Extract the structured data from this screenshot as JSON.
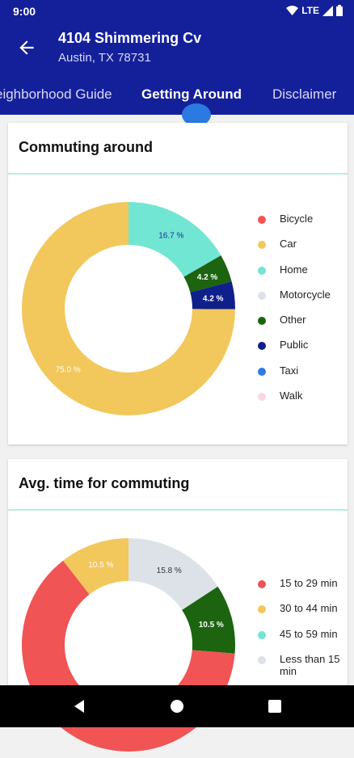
{
  "status": {
    "time": "9:00",
    "network": "LTE"
  },
  "header": {
    "title": "4104 Shimmering Cv",
    "subtitle": "Austin, TX 78731"
  },
  "tabs": [
    {
      "label": "eighborhood Guide",
      "active": false
    },
    {
      "label": "Getting Around",
      "active": true
    },
    {
      "label": "Disclaimer",
      "active": false
    }
  ],
  "colors": {
    "primary": "#14209a",
    "accent": "#2a7ae2",
    "divider": "#b9ece3"
  },
  "commuting": {
    "title": "Commuting around",
    "legend": [
      {
        "label": "Bicycle",
        "color": "#f05454"
      },
      {
        "label": "Car",
        "color": "#f2c75c"
      },
      {
        "label": "Home",
        "color": "#71e6d3"
      },
      {
        "label": "Motorcycle",
        "color": "#dde2e8"
      },
      {
        "label": "Other",
        "color": "#1c6410"
      },
      {
        "label": "Public",
        "color": "#10208a"
      },
      {
        "label": "Taxi",
        "color": "#2f7ae0"
      },
      {
        "label": "Walk",
        "color": "#fbd7e1"
      }
    ]
  },
  "commute_time": {
    "title": "Avg. time for commuting",
    "legend": [
      {
        "label": "15 to 29 min",
        "color": "#f05454"
      },
      {
        "label": "30 to 44 min",
        "color": "#f2c75c"
      },
      {
        "label": "45 to 59 min",
        "color": "#71e6d3"
      },
      {
        "label": "Less than 15 min",
        "color": "#dde2e8"
      }
    ]
  },
  "chart_data": [
    {
      "type": "pie",
      "title": "Commuting around",
      "slices": [
        {
          "label": "Home",
          "value": 16.7,
          "display": "16.7 %",
          "color": "#71e6d3",
          "text_color": "#1f2a9a"
        },
        {
          "label": "Other",
          "value": 4.2,
          "display": "4.2 %",
          "color": "#1c6410",
          "text_color": "#ffffff"
        },
        {
          "label": "Public",
          "value": 4.2,
          "display": "4.2 %",
          "color": "#10208a",
          "text_color": "#ffffff"
        },
        {
          "label": "Car",
          "value": 75.0,
          "display": "75.0 %",
          "color": "#f2c75c",
          "text_color": "#ffffff"
        }
      ]
    },
    {
      "type": "pie",
      "title": "Avg. time for commuting",
      "slices": [
        {
          "label": "Less than 15 min",
          "value": 15.8,
          "display": "15.8 %",
          "color": "#dde2e8",
          "text_color": "#333333"
        },
        {
          "label": "Other",
          "value": 10.5,
          "display": "10.5 %",
          "color": "#1c6410",
          "text_color": "#ffffff"
        },
        {
          "label": "15 to 29 min",
          "value": 63.2,
          "display": "",
          "color": "#f05454",
          "text_color": "#ffffff"
        },
        {
          "label": "30 to 44 min",
          "value": 10.5,
          "display": "10.5 %",
          "color": "#f2c75c",
          "text_color": "#ffffff"
        }
      ]
    }
  ]
}
